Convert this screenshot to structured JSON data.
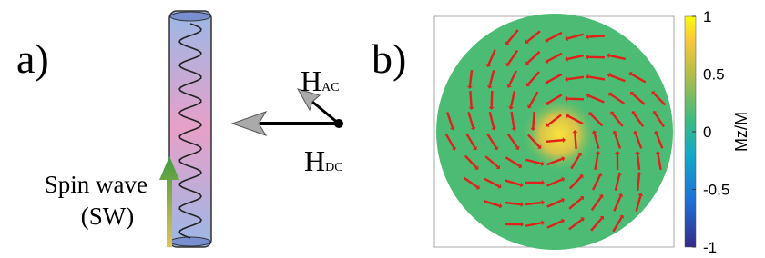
{
  "panel_a": {
    "label": "a)",
    "field_ac": {
      "symbol": "H",
      "subscript": "AC"
    },
    "field_dc": {
      "symbol": "H",
      "subscript": "DC"
    },
    "spin_wave": {
      "line1": "Spin wave",
      "line2": "(SW)"
    }
  },
  "panel_b": {
    "label": "b)",
    "colorbar": {
      "label": "Mz/M",
      "ticks": [
        "1",
        "0.5",
        "0",
        "-0.5",
        "-1"
      ]
    }
  }
}
